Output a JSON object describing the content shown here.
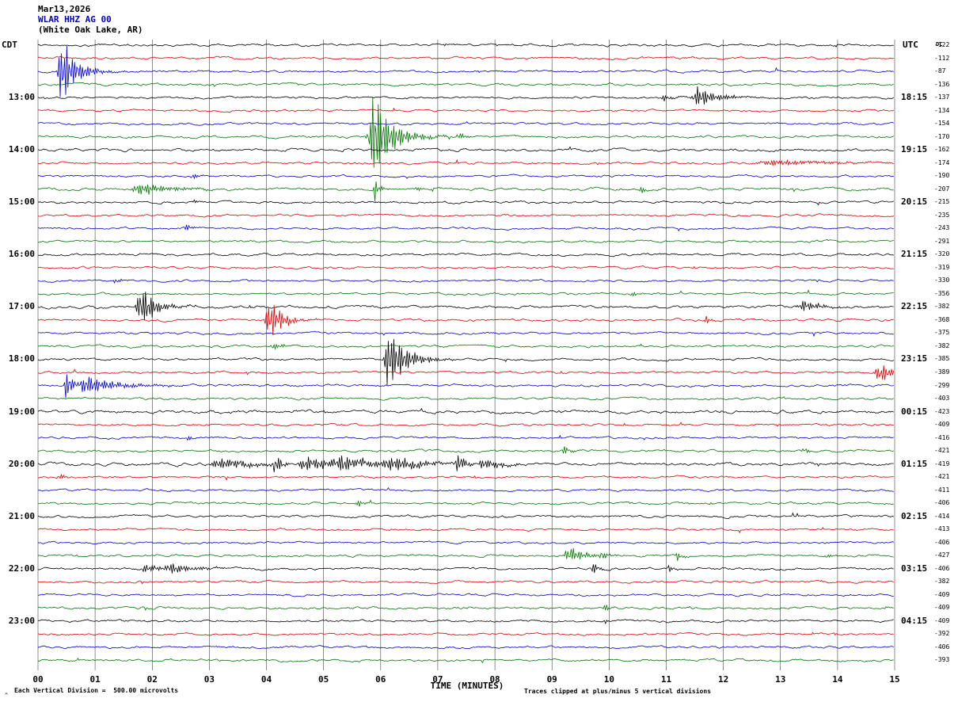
{
  "title": {
    "date": "Mar13,2026",
    "station": "WLAR HHZ AG 00",
    "location": "(White Oak Lake, AR)"
  },
  "axes": {
    "left_header": "CDT",
    "right_header": "UTC",
    "dc_header": "DC",
    "x_title": "TIME (MINUTES)",
    "x_ticks": [
      "00",
      "01",
      "02",
      "03",
      "04",
      "05",
      "06",
      "07",
      "08",
      "09",
      "10",
      "11",
      "12",
      "13",
      "14",
      "15"
    ]
  },
  "footer": {
    "left_note": "Each Vertical Division =  500.00 microvolts",
    "right_note": "Traces clipped at plus/minus 5 vertical divisions",
    "corner_mark": "^"
  },
  "colors": {
    "black": "#000000",
    "red": "#dd0000",
    "blue": "#0000cc",
    "green": "#007700"
  },
  "chart_data": {
    "type": "line",
    "subtype": "helicorder-seismogram",
    "station": "WLAR HHZ AG 00",
    "x_range_minutes": [
      0,
      15
    ],
    "row_interval_minutes": 15,
    "colors_cycle": [
      "black",
      "red",
      "blue",
      "green"
    ],
    "rows": [
      {
        "t": "12:00",
        "color": "black",
        "dc": -122,
        "left": "",
        "right": "",
        "noise": 1.3,
        "events": []
      },
      {
        "t": "12:15",
        "color": "red",
        "dc": -112,
        "left": "",
        "right": "",
        "noise": 1.3,
        "events": []
      },
      {
        "t": "12:30",
        "color": "blue",
        "dc": -87,
        "left": "",
        "right": "",
        "noise": 1.3,
        "events": [
          [
            0.42,
            45,
            0.25
          ]
        ]
      },
      {
        "t": "12:45",
        "color": "green",
        "dc": -136,
        "left": "",
        "right": "",
        "noise": 1.4,
        "events": []
      },
      {
        "t": "13:00",
        "color": "black",
        "dc": -137,
        "left": "13:00",
        "right": "18:15",
        "noise": 1.3,
        "events": [
          [
            11.55,
            16,
            0.3
          ],
          [
            10.95,
            5,
            0.15
          ]
        ]
      },
      {
        "t": "13:15",
        "color": "red",
        "dc": -134,
        "left": "",
        "right": "",
        "noise": 1.2,
        "events": []
      },
      {
        "t": "13:30",
        "color": "blue",
        "dc": -154,
        "left": "",
        "right": "",
        "noise": 1.2,
        "events": []
      },
      {
        "t": "13:45",
        "color": "green",
        "dc": -170,
        "left": "",
        "right": "",
        "noise": 1.4,
        "events": [
          [
            5.88,
            65,
            0.3
          ],
          [
            7.35,
            6,
            0.1
          ]
        ]
      },
      {
        "t": "14:00",
        "color": "black",
        "dc": -162,
        "left": "14:00",
        "right": "19:15",
        "noise": 1.5,
        "events": []
      },
      {
        "t": "14:15",
        "color": "red",
        "dc": -174,
        "left": "",
        "right": "",
        "noise": 1.3,
        "events": [
          [
            12.9,
            4,
            1.0
          ]
        ]
      },
      {
        "t": "14:30",
        "color": "blue",
        "dc": -190,
        "left": "",
        "right": "",
        "noise": 1.2,
        "events": [
          [
            2.7,
            5,
            0.1
          ]
        ]
      },
      {
        "t": "14:45",
        "color": "green",
        "dc": -207,
        "left": "",
        "right": "",
        "noise": 1.4,
        "events": [
          [
            1.8,
            9,
            0.5
          ],
          [
            5.9,
            20,
            0.06
          ],
          [
            6.6,
            6,
            0.08
          ],
          [
            10.55,
            6,
            0.08
          ]
        ]
      },
      {
        "t": "15:00",
        "color": "black",
        "dc": -215,
        "left": "15:00",
        "right": "20:15",
        "noise": 1.3,
        "events": [
          [
            2.7,
            5,
            0.08
          ]
        ]
      },
      {
        "t": "15:15",
        "color": "red",
        "dc": -235,
        "left": "",
        "right": "",
        "noise": 1.2,
        "events": []
      },
      {
        "t": "15:30",
        "color": "blue",
        "dc": -243,
        "left": "",
        "right": "",
        "noise": 1.2,
        "events": [
          [
            2.6,
            6,
            0.08
          ]
        ]
      },
      {
        "t": "15:45",
        "color": "green",
        "dc": -291,
        "left": "",
        "right": "",
        "noise": 1.3,
        "events": []
      },
      {
        "t": "16:00",
        "color": "black",
        "dc": -320,
        "left": "16:00",
        "right": "21:15",
        "noise": 1.3,
        "events": []
      },
      {
        "t": "16:15",
        "color": "red",
        "dc": -319,
        "left": "",
        "right": "",
        "noise": 1.2,
        "events": []
      },
      {
        "t": "16:30",
        "color": "blue",
        "dc": -330,
        "left": "",
        "right": "",
        "noise": 1.2,
        "events": [
          [
            1.35,
            5,
            0.08
          ]
        ]
      },
      {
        "t": "16:45",
        "color": "green",
        "dc": -356,
        "left": "",
        "right": "",
        "noise": 1.3,
        "events": [
          [
            10.4,
            4,
            0.1
          ]
        ]
      },
      {
        "t": "17:00",
        "color": "black",
        "dc": -382,
        "left": "17:00",
        "right": "22:15",
        "noise": 1.5,
        "events": [
          [
            1.8,
            30,
            0.25
          ],
          [
            13.4,
            8,
            0.3
          ]
        ]
      },
      {
        "t": "17:15",
        "color": "red",
        "dc": -368,
        "left": "",
        "right": "",
        "noise": 1.3,
        "events": [
          [
            4.05,
            30,
            0.22
          ],
          [
            11.7,
            10,
            0.06
          ]
        ]
      },
      {
        "t": "17:30",
        "color": "blue",
        "dc": -375,
        "left": "",
        "right": "",
        "noise": 1.2,
        "events": []
      },
      {
        "t": "17:45",
        "color": "green",
        "dc": -382,
        "left": "",
        "right": "",
        "noise": 1.3,
        "events": [
          [
            4.1,
            5,
            0.15
          ]
        ]
      },
      {
        "t": "18:00",
        "color": "black",
        "dc": -385,
        "left": "18:00",
        "right": "23:15",
        "noise": 1.3,
        "events": [
          [
            6.15,
            45,
            0.28
          ]
        ]
      },
      {
        "t": "18:15",
        "color": "red",
        "dc": -389,
        "left": "",
        "right": "",
        "noise": 1.3,
        "events": [
          [
            14.75,
            12,
            0.35
          ]
        ]
      },
      {
        "t": "18:30",
        "color": "blue",
        "dc": -299,
        "left": "",
        "right": "",
        "noise": 1.3,
        "events": [
          [
            0.5,
            22,
            0.12
          ],
          [
            0.85,
            14,
            0.5
          ]
        ]
      },
      {
        "t": "18:45",
        "color": "green",
        "dc": -403,
        "left": "",
        "right": "",
        "noise": 1.3,
        "events": []
      },
      {
        "t": "19:00",
        "color": "black",
        "dc": -423,
        "left": "19:00",
        "right": "00:15",
        "noise": 1.7,
        "events": []
      },
      {
        "t": "19:15",
        "color": "red",
        "dc": -409,
        "left": "",
        "right": "",
        "noise": 1.2,
        "events": []
      },
      {
        "t": "19:30",
        "color": "blue",
        "dc": -416,
        "left": "",
        "right": "",
        "noise": 1.2,
        "events": [
          [
            2.6,
            4,
            0.1
          ]
        ]
      },
      {
        "t": "19:45",
        "color": "green",
        "dc": -421,
        "left": "",
        "right": "",
        "noise": 1.3,
        "events": [
          [
            9.2,
            8,
            0.1
          ],
          [
            13.4,
            5,
            0.1
          ]
        ]
      },
      {
        "t": "20:00",
        "color": "black",
        "dc": -419,
        "left": "20:00",
        "right": "01:15",
        "noise": 1.6,
        "events": [
          [
            3.2,
            8,
            0.6
          ],
          [
            4.15,
            20,
            0.12
          ],
          [
            4.7,
            10,
            0.5
          ],
          [
            5.3,
            12,
            0.5
          ],
          [
            6.2,
            10,
            0.5
          ],
          [
            7.35,
            18,
            0.12
          ],
          [
            7.8,
            8,
            0.3
          ]
        ]
      },
      {
        "t": "20:15",
        "color": "red",
        "dc": -421,
        "left": "",
        "right": "",
        "noise": 1.2,
        "events": [
          [
            0.35,
            6,
            0.08
          ]
        ]
      },
      {
        "t": "20:30",
        "color": "blue",
        "dc": -411,
        "left": "",
        "right": "",
        "noise": 1.2,
        "events": []
      },
      {
        "t": "20:45",
        "color": "green",
        "dc": -406,
        "left": "",
        "right": "",
        "noise": 1.3,
        "events": [
          [
            5.6,
            5,
            0.1
          ]
        ]
      },
      {
        "t": "21:00",
        "color": "black",
        "dc": -414,
        "left": "21:00",
        "right": "02:15",
        "noise": 1.3,
        "events": []
      },
      {
        "t": "21:15",
        "color": "red",
        "dc": -413,
        "left": "",
        "right": "",
        "noise": 1.2,
        "events": []
      },
      {
        "t": "21:30",
        "color": "blue",
        "dc": -406,
        "left": "",
        "right": "",
        "noise": 1.2,
        "events": []
      },
      {
        "t": "21:45",
        "color": "green",
        "dc": -427,
        "left": "",
        "right": "",
        "noise": 1.3,
        "events": [
          [
            9.3,
            12,
            0.25
          ],
          [
            9.85,
            10,
            0.08
          ],
          [
            11.2,
            6,
            0.1
          ],
          [
            13.8,
            4,
            0.1
          ]
        ]
      },
      {
        "t": "22:00",
        "color": "black",
        "dc": -406,
        "left": "22:00",
        "right": "03:15",
        "noise": 1.4,
        "events": [
          [
            1.9,
            6,
            0.3
          ],
          [
            2.35,
            7,
            0.35
          ],
          [
            2.8,
            5,
            0.3
          ],
          [
            9.7,
            12,
            0.08
          ],
          [
            11.05,
            6,
            0.06
          ]
        ]
      },
      {
        "t": "22:15",
        "color": "red",
        "dc": -382,
        "left": "",
        "right": "",
        "noise": 1.2,
        "events": []
      },
      {
        "t": "22:30",
        "color": "blue",
        "dc": -409,
        "left": "",
        "right": "",
        "noise": 1.2,
        "events": []
      },
      {
        "t": "22:45",
        "color": "green",
        "dc": -409,
        "left": "",
        "right": "",
        "noise": 1.3,
        "events": [
          [
            9.9,
            8,
            0.07
          ]
        ]
      },
      {
        "t": "23:00",
        "color": "black",
        "dc": -409,
        "left": "23:00",
        "right": "04:15",
        "noise": 1.3,
        "events": [
          [
            9.9,
            3,
            0.1
          ]
        ]
      },
      {
        "t": "23:15",
        "color": "red",
        "dc": -392,
        "left": "",
        "right": "",
        "noise": 1.2,
        "events": []
      },
      {
        "t": "23:30",
        "color": "blue",
        "dc": -406,
        "left": "",
        "right": "",
        "noise": 1.2,
        "events": []
      },
      {
        "t": "23:45",
        "color": "green",
        "dc": -393,
        "left": "",
        "right": "",
        "noise": 1.3,
        "events": []
      }
    ]
  }
}
